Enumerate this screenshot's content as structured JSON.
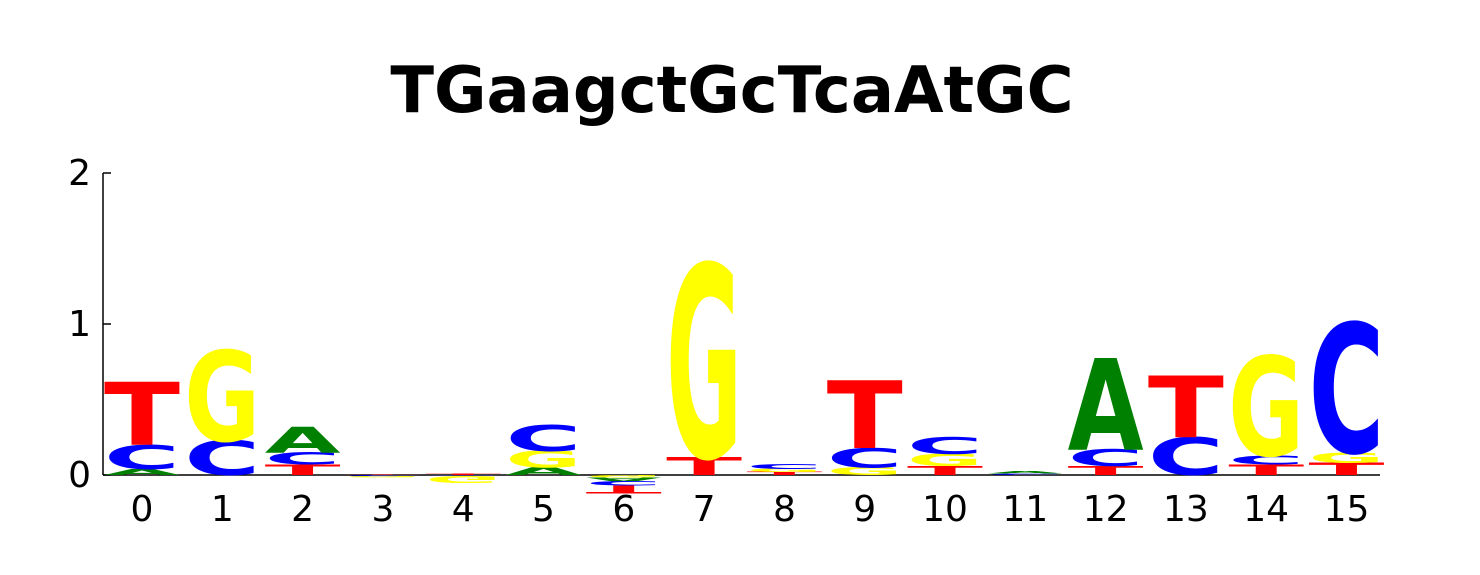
{
  "chart_data": {
    "type": "sequence-logo",
    "title": "TGaagctGcTcaAtGC",
    "xlabel": "",
    "ylabel": "",
    "ylim": [
      0,
      2
    ],
    "y_ticks": [
      "0",
      "1",
      "2"
    ],
    "categories": [
      "0",
      "1",
      "2",
      "3",
      "4",
      "5",
      "6",
      "7",
      "8",
      "9",
      "10",
      "11",
      "12",
      "13",
      "14",
      "15"
    ],
    "colors": {
      "A": "#008000",
      "C": "#0000ff",
      "G": "#ffff00",
      "T": "#ff0000"
    },
    "positions": [
      {
        "pos": "0",
        "stack": [
          {
            "base": "A",
            "value": 0.04
          },
          {
            "base": "C",
            "value": 0.16
          },
          {
            "base": "T",
            "value": 0.42
          }
        ]
      },
      {
        "pos": "1",
        "stack": [
          {
            "base": "C",
            "value": 0.23
          },
          {
            "base": "G",
            "value": 0.6
          }
        ]
      },
      {
        "pos": "2",
        "stack": [
          {
            "base": "T",
            "value": 0.07
          },
          {
            "base": "C",
            "value": 0.08
          },
          {
            "base": "A",
            "value": 0.17
          }
        ]
      },
      {
        "pos": "3",
        "stack": [
          {
            "base": "T",
            "value": 0.005
          },
          {
            "base": "C",
            "value": -0.006
          },
          {
            "base": "G",
            "value": -0.006
          }
        ]
      },
      {
        "pos": "4",
        "stack": [
          {
            "base": "T",
            "value": 0.007
          },
          {
            "base": "C",
            "value": -0.005
          },
          {
            "base": "G",
            "value": -0.045
          }
        ]
      },
      {
        "pos": "5",
        "stack": [
          {
            "base": "A",
            "value": 0.05
          },
          {
            "base": "G",
            "value": 0.11
          },
          {
            "base": "C",
            "value": 0.17
          }
        ]
      },
      {
        "pos": "6",
        "stack": [
          {
            "base": "G",
            "value": -0.015
          },
          {
            "base": "A",
            "value": -0.025
          },
          {
            "base": "C",
            "value": -0.03
          },
          {
            "base": "T",
            "value": -0.05
          }
        ]
      },
      {
        "pos": "7",
        "stack": [
          {
            "base": "T",
            "value": 0.12
          },
          {
            "base": "G",
            "value": 1.28
          }
        ]
      },
      {
        "pos": "8",
        "stack": [
          {
            "base": "T",
            "value": 0.02
          },
          {
            "base": "G",
            "value": 0.02
          },
          {
            "base": "C",
            "value": 0.035
          }
        ]
      },
      {
        "pos": "9",
        "stack": [
          {
            "base": "G",
            "value": 0.05
          },
          {
            "base": "C",
            "value": 0.13
          },
          {
            "base": "T",
            "value": 0.45
          }
        ]
      },
      {
        "pos": "10",
        "stack": [
          {
            "base": "T",
            "value": 0.06
          },
          {
            "base": "G",
            "value": 0.08
          },
          {
            "base": "C",
            "value": 0.11
          }
        ]
      },
      {
        "pos": "11",
        "stack": [
          {
            "base": "C",
            "value": 0.01
          },
          {
            "base": "A",
            "value": 0.015
          }
        ]
      },
      {
        "pos": "12",
        "stack": [
          {
            "base": "T",
            "value": 0.06
          },
          {
            "base": "C",
            "value": 0.11
          },
          {
            "base": "A",
            "value": 0.61
          }
        ]
      },
      {
        "pos": "13",
        "stack": [
          {
            "base": "C",
            "value": 0.25
          },
          {
            "base": "T",
            "value": 0.41
          }
        ]
      },
      {
        "pos": "14",
        "stack": [
          {
            "base": "T",
            "value": 0.07
          },
          {
            "base": "C",
            "value": 0.06
          },
          {
            "base": "G",
            "value": 0.66
          }
        ]
      },
      {
        "pos": "15",
        "stack": [
          {
            "base": "T",
            "value": 0.08
          },
          {
            "base": "G",
            "value": 0.07
          },
          {
            "base": "C",
            "value": 0.86
          }
        ]
      }
    ]
  }
}
